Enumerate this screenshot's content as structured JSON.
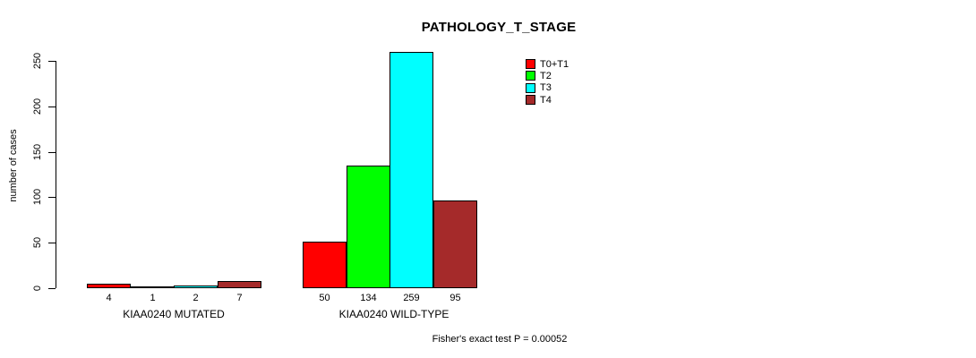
{
  "title": "PATHOLOGY_T_STAGE",
  "y_axis": {
    "label": "number of cases",
    "ticks": [
      0,
      50,
      100,
      150,
      200,
      250
    ]
  },
  "legend": [
    {
      "label": "T0+T1",
      "color": "#FF0000"
    },
    {
      "label": "T2",
      "color": "#00FF00"
    },
    {
      "label": "T3",
      "color": "#00FFFF"
    },
    {
      "label": "T4",
      "color": "#A52A2A"
    }
  ],
  "groups": [
    {
      "label": "KIAA0240 MUTATED",
      "values": [
        4,
        1,
        2,
        7
      ]
    },
    {
      "label": "KIAA0240 WILD-TYPE",
      "values": [
        50,
        134,
        259,
        95
      ]
    }
  ],
  "footer": "Fisher's exact test P = 0.00052",
  "chart_data": {
    "type": "bar",
    "title": "PATHOLOGY_T_STAGE",
    "xlabel": "",
    "ylabel": "number of cases",
    "ylim": [
      0,
      250
    ],
    "grid": false,
    "legend_position": "top-right",
    "categories": [
      "KIAA0240 MUTATED",
      "KIAA0240 WILD-TYPE"
    ],
    "series": [
      {
        "name": "T0+T1",
        "color": "#FF0000",
        "values": [
          4,
          50
        ]
      },
      {
        "name": "T2",
        "color": "#00FF00",
        "values": [
          1,
          134
        ]
      },
      {
        "name": "T3",
        "color": "#00FFFF",
        "values": [
          2,
          259
        ]
      },
      {
        "name": "T4",
        "color": "#A52A2A",
        "values": [
          7,
          95
        ]
      }
    ],
    "bar_value_labels": [
      [
        4,
        1,
        2,
        7
      ],
      [
        50,
        134,
        259,
        95
      ]
    ],
    "annotation": "Fisher's exact test P = 0.00052"
  }
}
